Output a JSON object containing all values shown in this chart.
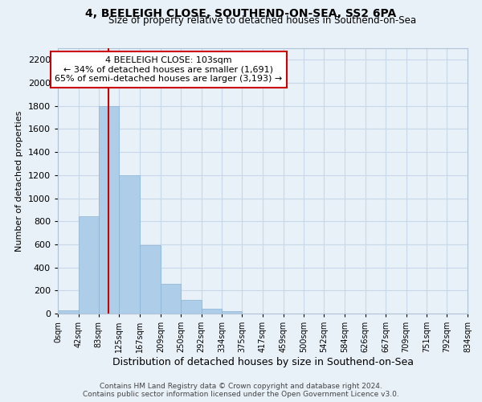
{
  "title": "4, BEELEIGH CLOSE, SOUTHEND-ON-SEA, SS2 6PA",
  "subtitle": "Size of property relative to detached houses in Southend-on-Sea",
  "xlabel": "Distribution of detached houses by size in Southend-on-Sea",
  "ylabel": "Number of detached properties",
  "footer_line1": "Contains HM Land Registry data © Crown copyright and database right 2024.",
  "footer_line2": "Contains public sector information licensed under the Open Government Licence v3.0.",
  "bin_edges": [
    0,
    42,
    83,
    125,
    167,
    209,
    250,
    292,
    334,
    375,
    417,
    459,
    500,
    542,
    584,
    626,
    667,
    709,
    751,
    792,
    834
  ],
  "bin_labels": [
    "0sqm",
    "42sqm",
    "83sqm",
    "125sqm",
    "167sqm",
    "209sqm",
    "250sqm",
    "292sqm",
    "334sqm",
    "375sqm",
    "417sqm",
    "459sqm",
    "500sqm",
    "542sqm",
    "584sqm",
    "626sqm",
    "667sqm",
    "709sqm",
    "751sqm",
    "792sqm",
    "834sqm"
  ],
  "bar_heights": [
    25,
    840,
    1800,
    1200,
    590,
    255,
    120,
    45,
    20,
    0,
    0,
    0,
    0,
    0,
    0,
    0,
    0,
    0,
    0,
    0
  ],
  "bar_color": "#aecde8",
  "bar_edge_color": "#8ab4d4",
  "vline_x": 103,
  "vline_color": "#cc0000",
  "annotation_title": "4 BEELEIGH CLOSE: 103sqm",
  "annotation_line1": "← 34% of detached houses are smaller (1,691)",
  "annotation_line2": "65% of semi-detached houses are larger (3,193) →",
  "annotation_box_color": "#ffffff",
  "annotation_box_edge": "#cc0000",
  "ylim": [
    0,
    2300
  ],
  "yticks": [
    0,
    200,
    400,
    600,
    800,
    1000,
    1200,
    1400,
    1600,
    1800,
    2000,
    2200
  ],
  "grid_color": "#c8d8e8",
  "background_color": "#e8f0f8"
}
